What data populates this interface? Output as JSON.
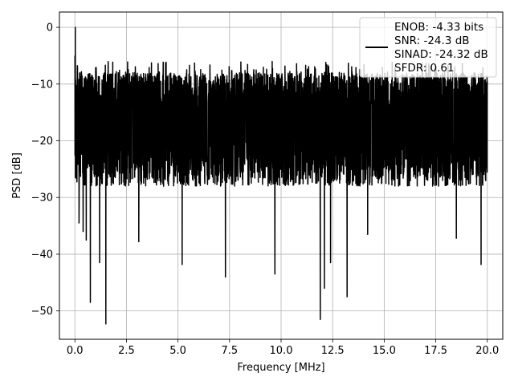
{
  "chart_data": {
    "type": "line",
    "title": "",
    "xlabel": "Frequency [MHz]",
    "ylabel": "PSD [dB]",
    "xlim": [
      -0.75,
      20.75
    ],
    "ylim": [
      -55,
      2.7
    ],
    "x_ticks": [
      0.0,
      2.5,
      5.0,
      7.5,
      10.0,
      12.5,
      15.0,
      17.5,
      20.0
    ],
    "x_tick_labels": [
      "0.0",
      "2.5",
      "5.0",
      "7.5",
      "10.0",
      "12.5",
      "15.0",
      "17.5",
      "20.0"
    ],
    "y_ticks": [
      0,
      -10,
      -20,
      -30,
      -40,
      -50
    ],
    "y_tick_labels": [
      "0",
      "−10",
      "−20",
      "−30",
      "−40",
      "−50"
    ],
    "grid": true,
    "legend_position": "top-right",
    "series": [
      {
        "color": "#000000",
        "x_range": [
          0,
          20
        ],
        "band_upper_typical": -8,
        "band_lower_typical": -28,
        "peak": {
          "x": 0.02,
          "y": 0.0
        },
        "notable_dips": [
          {
            "x": 0.2,
            "y": -34.5
          },
          {
            "x": 0.4,
            "y": -36.0
          },
          {
            "x": 0.55,
            "y": -37.5
          },
          {
            "x": 0.75,
            "y": -48.5
          },
          {
            "x": 1.2,
            "y": -41.5
          },
          {
            "x": 1.5,
            "y": -52.3
          },
          {
            "x": 3.1,
            "y": -37.8
          },
          {
            "x": 5.2,
            "y": -41.8
          },
          {
            "x": 7.3,
            "y": -44.0
          },
          {
            "x": 9.7,
            "y": -43.5
          },
          {
            "x": 11.9,
            "y": -51.5
          },
          {
            "x": 12.1,
            "y": -46.0
          },
          {
            "x": 12.4,
            "y": -41.5
          },
          {
            "x": 13.2,
            "y": -47.5
          },
          {
            "x": 14.2,
            "y": -36.5
          },
          {
            "x": 18.5,
            "y": -37.2
          },
          {
            "x": 19.7,
            "y": -41.8
          }
        ]
      }
    ],
    "legend": {
      "lines": [
        "ENOB: -4.33 bits",
        "SNR: -24.3 dB",
        "SINAD: -24.32 dB",
        "SFDR: 0.61"
      ]
    }
  }
}
